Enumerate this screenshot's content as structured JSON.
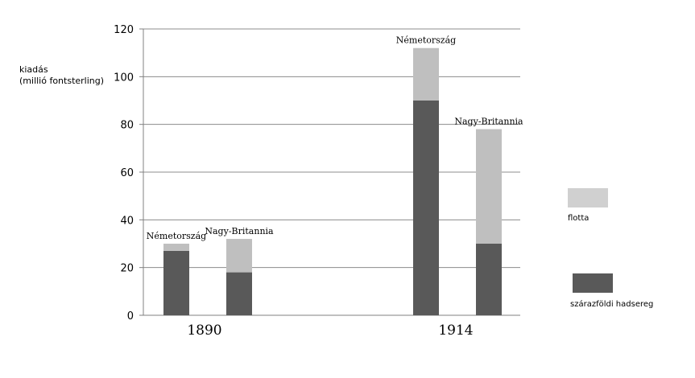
{
  "chart_data": {
    "type": "bar",
    "stacked": true,
    "ylabel": "kiadás",
    "ylabel_unit": "(millió fontsterling)",
    "ylim": [
      0,
      120
    ],
    "yticks": [
      0,
      20,
      40,
      60,
      80,
      100,
      120
    ],
    "grid": true,
    "legend_position": "right",
    "groups": [
      "1890",
      "1914"
    ],
    "categories": [
      "Németország",
      "Nagy-Britannia",
      "Németország",
      "Nagy-Britannia"
    ],
    "series": [
      {
        "name": "szárazföldi hadsereg",
        "color": "#595959",
        "values": [
          27,
          18,
          90,
          30
        ]
      },
      {
        "name": "flotta",
        "color": "#bfbfbf",
        "values": [
          3,
          14,
          22,
          48
        ]
      }
    ],
    "legend": [
      {
        "name": "flotta",
        "color": "#d0d0d0"
      },
      {
        "name": "szárazföldi hadsereg",
        "color": "#595959"
      }
    ]
  }
}
